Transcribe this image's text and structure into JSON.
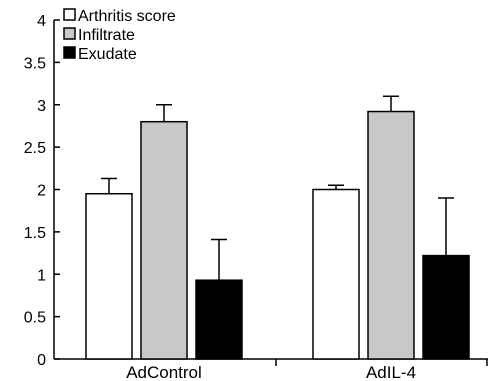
{
  "chart_data": {
    "type": "bar",
    "categories": [
      "AdControl",
      "AdIL-4"
    ],
    "series": [
      {
        "name": "Arthritis score",
        "color": "#ffffff",
        "values": [
          1.95,
          2.0
        ],
        "errors": [
          0.18,
          0.05
        ]
      },
      {
        "name": "Infiltrate",
        "color": "#c8c8c8",
        "values": [
          2.8,
          2.92
        ],
        "errors": [
          0.2,
          0.18
        ]
      },
      {
        "name": "Exudate",
        "color": "#000000",
        "values": [
          0.93,
          1.22
        ],
        "errors": [
          0.48,
          0.68
        ]
      }
    ],
    "ylim": [
      0,
      4
    ],
    "yticks": [
      "0",
      "0.5",
      "1",
      "1.5",
      "2",
      "2.5",
      "3",
      "3.5",
      "4"
    ],
    "legend": "top-left",
    "grid": false
  }
}
